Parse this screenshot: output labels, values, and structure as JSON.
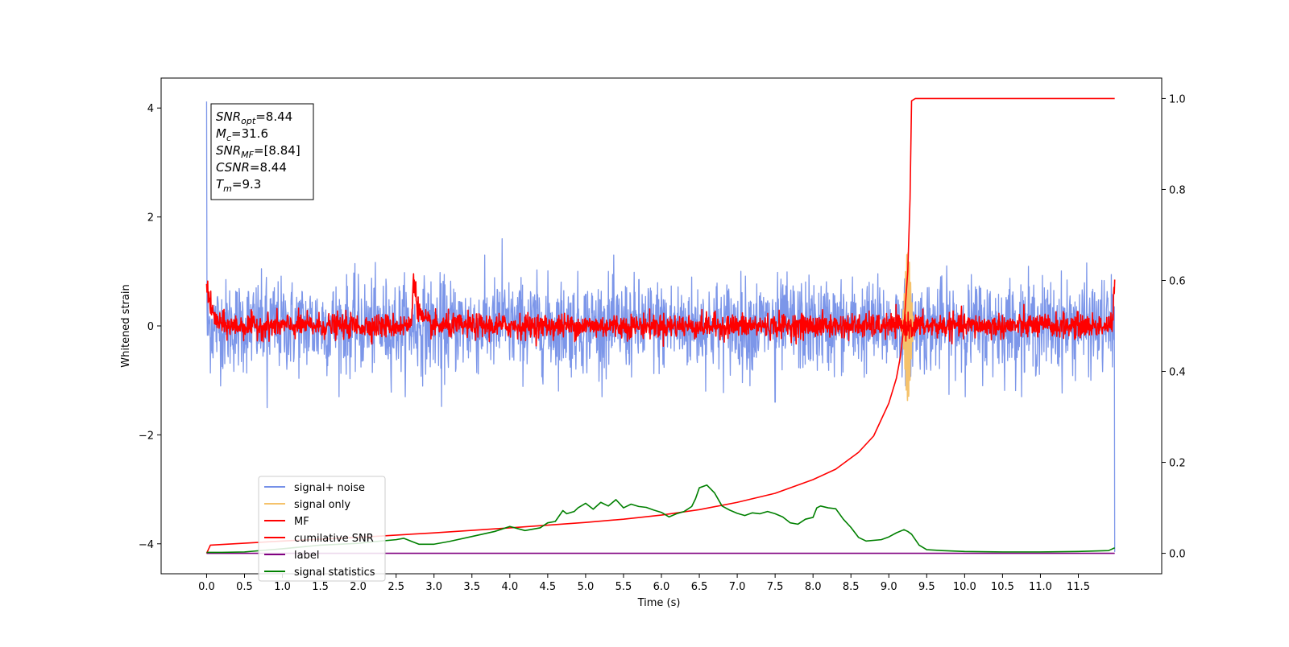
{
  "chart_data": {
    "type": "line",
    "xlabel": "Time (s)",
    "ylabel": "Whitened strain",
    "xlim": [
      -0.6,
      12.6
    ],
    "ylim": [
      -4.55,
      4.55
    ],
    "y2lim": [
      -0.045,
      1.045
    ],
    "xticks": [
      "0.0",
      "0.5",
      "1.0",
      "1.5",
      "2.0",
      "2.5",
      "3.0",
      "3.5",
      "4.0",
      "4.5",
      "5.0",
      "5.5",
      "6.0",
      "6.5",
      "7.0",
      "7.5",
      "8.0",
      "8.5",
      "9.0",
      "9.5",
      "10.0",
      "10.5",
      "11.0",
      "11.5"
    ],
    "yticks": [
      "4",
      "2",
      "0",
      "−2",
      "−4"
    ],
    "y2ticks": [
      "1.0",
      "0.8",
      "0.6",
      "0.4",
      "0.2",
      "0.0"
    ],
    "grid": false,
    "legend_position": "lower-left",
    "annotation": {
      "lines": [
        {
          "sym": "SNR",
          "sub": "opt",
          "val": "=8.44"
        },
        {
          "sym": "M",
          "sub": "c",
          "val": "=31.6"
        },
        {
          "sym": "SNR",
          "sub": "MF",
          "val": "=[8.84]"
        },
        {
          "sym": "CSNR",
          "sub": "",
          "val": "=8.44"
        },
        {
          "sym": "T",
          "sub": "m",
          "val": "=9.3"
        }
      ]
    },
    "series": [
      {
        "name": "signal+ noise",
        "color": "#7590e8",
        "axis": "left",
        "kind": "noise",
        "amplitude": 0.42,
        "range": [
          0,
          11.98
        ],
        "spikes": [
          [
            0.0,
            4.12
          ],
          [
            11.98,
            -4.15
          ],
          [
            0.8,
            -1.5
          ],
          [
            3.9,
            1.6
          ],
          [
            3.1,
            -1.48
          ],
          [
            7.5,
            -1.4
          ]
        ]
      },
      {
        "name": "signal only",
        "color": "#f5c26b",
        "axis": "left",
        "kind": "burst",
        "center": 9.25,
        "range": [
          9.15,
          9.32
        ],
        "peak": 1.4
      },
      {
        "name": "MF",
        "color": "#ff0000",
        "axis": "left",
        "kind": "mf",
        "amplitude": 0.11,
        "range": [
          0,
          11.98
        ],
        "bumps": [
          [
            2.73,
            0.95
          ],
          [
            0.0,
            0.85
          ],
          [
            11.98,
            0.82
          ]
        ]
      },
      {
        "name": "cumilative SNR",
        "color": "#ff0000",
        "axis": "right",
        "x": [
          0.0,
          0.05,
          1.0,
          2.0,
          3.0,
          4.0,
          5.0,
          5.5,
          6.0,
          6.5,
          7.0,
          7.5,
          8.0,
          8.3,
          8.6,
          8.8,
          9.0,
          9.1,
          9.15,
          9.2,
          9.25,
          9.28,
          9.3,
          9.35,
          11.98
        ],
        "y": [
          0.0,
          0.018,
          0.027,
          0.035,
          0.045,
          0.056,
          0.068,
          0.075,
          0.084,
          0.096,
          0.112,
          0.132,
          0.162,
          0.185,
          0.222,
          0.258,
          0.33,
          0.385,
          0.43,
          0.5,
          0.62,
          0.78,
          0.995,
          1.0,
          1.0
        ]
      },
      {
        "name": "label",
        "color": "#800080",
        "axis": "right",
        "x": [
          0.0,
          11.98
        ],
        "y": [
          0.0,
          0.0
        ]
      },
      {
        "name": "signal statistics",
        "color": "#008000",
        "axis": "right",
        "x": [
          0.0,
          0.2,
          0.5,
          1.0,
          1.5,
          2.0,
          2.3,
          2.5,
          2.6,
          2.8,
          3.0,
          3.2,
          3.5,
          3.8,
          4.0,
          4.2,
          4.4,
          4.5,
          4.6,
          4.7,
          4.75,
          4.85,
          4.9,
          5.0,
          5.1,
          5.2,
          5.3,
          5.4,
          5.5,
          5.6,
          5.7,
          5.8,
          5.9,
          6.0,
          6.1,
          6.2,
          6.3,
          6.4,
          6.45,
          6.5,
          6.6,
          6.7,
          6.8,
          6.9,
          7.0,
          7.1,
          7.2,
          7.3,
          7.4,
          7.5,
          7.6,
          7.7,
          7.8,
          7.9,
          8.0,
          8.05,
          8.1,
          8.2,
          8.3,
          8.4,
          8.5,
          8.6,
          8.7,
          8.9,
          9.0,
          9.1,
          9.2,
          9.25,
          9.3,
          9.4,
          9.5,
          9.7,
          10.0,
          10.5,
          11.0,
          11.5,
          11.9,
          11.98
        ],
        "y": [
          0.002,
          0.002,
          0.003,
          0.01,
          0.018,
          0.022,
          0.027,
          0.03,
          0.033,
          0.02,
          0.02,
          0.026,
          0.037,
          0.048,
          0.059,
          0.05,
          0.056,
          0.067,
          0.07,
          0.094,
          0.087,
          0.092,
          0.1,
          0.11,
          0.097,
          0.112,
          0.104,
          0.118,
          0.1,
          0.108,
          0.103,
          0.101,
          0.095,
          0.09,
          0.08,
          0.087,
          0.092,
          0.103,
          0.12,
          0.144,
          0.15,
          0.133,
          0.104,
          0.095,
          0.088,
          0.083,
          0.089,
          0.087,
          0.092,
          0.087,
          0.08,
          0.067,
          0.064,
          0.075,
          0.079,
          0.1,
          0.104,
          0.1,
          0.098,
          0.075,
          0.057,
          0.035,
          0.027,
          0.03,
          0.036,
          0.045,
          0.052,
          0.048,
          0.042,
          0.018,
          0.008,
          0.006,
          0.004,
          0.003,
          0.003,
          0.004,
          0.006,
          0.012
        ]
      }
    ]
  }
}
